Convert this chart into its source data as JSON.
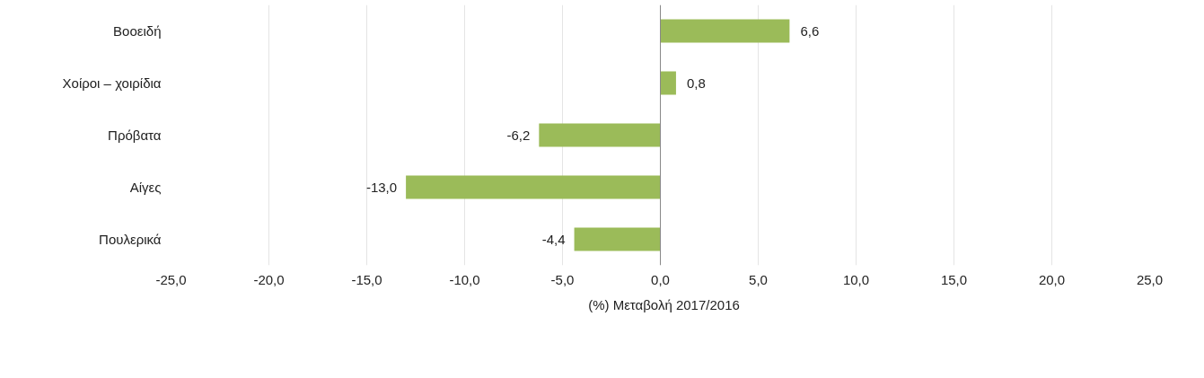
{
  "chart_data": {
    "type": "bar",
    "orientation": "horizontal",
    "categories": [
      "Βοοειδή",
      "Χοίροι – χοιρίδια",
      "Πρόβατα",
      "Αίγες",
      "Πουλερικά"
    ],
    "series": [
      {
        "name": "(%) Μεταβολή 2017/2016",
        "color": "#9bbb59",
        "values": [
          6.6,
          0.8,
          -6.2,
          -13.0,
          -4.4
        ],
        "value_labels": [
          "6,6",
          "0,8",
          "-6,2",
          "-13,0",
          "-4,4"
        ]
      }
    ],
    "xlim": [
      -25,
      25
    ],
    "xticks": [
      {
        "value": -25,
        "label": "-25,0"
      },
      {
        "value": -20,
        "label": "-20,0"
      },
      {
        "value": -15,
        "label": "-15,0"
      },
      {
        "value": -10,
        "label": "-10,0"
      },
      {
        "value": -5,
        "label": "-5,0"
      },
      {
        "value": 0,
        "label": "0,0"
      },
      {
        "value": 5,
        "label": "5,0"
      },
      {
        "value": 10,
        "label": "10,0"
      },
      {
        "value": 15,
        "label": "15,0"
      },
      {
        "value": 20,
        "label": "20,0"
      },
      {
        "value": 25,
        "label": "25,0"
      }
    ],
    "grid": "x",
    "legend": "bottom"
  }
}
